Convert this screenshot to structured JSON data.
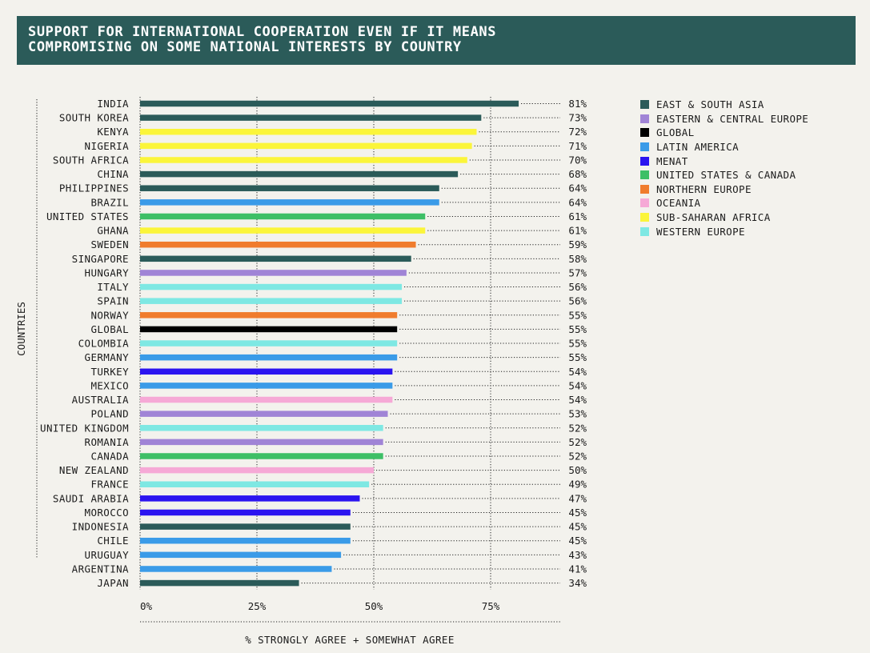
{
  "title": {
    "line1": "SUPPORT FOR INTERNATIONAL COOPERATION EVEN IF IT MEANS",
    "line2": "COMPROMISING ON SOME NATIONAL INTERESTS BY COUNTRY"
  },
  "chart_data": {
    "type": "bar",
    "orientation": "horizontal",
    "xlabel": "% STRONGLY AGREE + SOMEWHAT AGREE",
    "ylabel": "COUNTRIES",
    "xlim": [
      0,
      90
    ],
    "xticks": [
      0,
      25,
      50,
      75
    ],
    "xtick_labels": [
      "0%",
      "25%",
      "50%",
      "75%"
    ],
    "value_suffix": "%",
    "grid": "vertical-dotted",
    "legend_position": "right",
    "regions": [
      {
        "name": "EAST & SOUTH ASIA",
        "color": "#2b5b59"
      },
      {
        "name": "EASTERN & CENTRAL EUROPE",
        "color": "#a084d6"
      },
      {
        "name": "GLOBAL",
        "color": "#000000"
      },
      {
        "name": "LATIN AMERICA",
        "color": "#3a9be8"
      },
      {
        "name": "MENAT",
        "color": "#2b14f0"
      },
      {
        "name": "UNITED STATES & CANADA",
        "color": "#3dbf66"
      },
      {
        "name": "NORTHERN EUROPE",
        "color": "#f07c2d"
      },
      {
        "name": "OCEANIA",
        "color": "#f6a9d6"
      },
      {
        "name": "SUB-SAHARAN AFRICA",
        "color": "#fbf53a"
      },
      {
        "name": "WESTERN EUROPE",
        "color": "#7ee8e3"
      }
    ],
    "bars": [
      {
        "label": "INDIA",
        "value": 81,
        "region": 0
      },
      {
        "label": "SOUTH KOREA",
        "value": 73,
        "region": 0
      },
      {
        "label": "KENYA",
        "value": 72,
        "region": 8
      },
      {
        "label": "NIGERIA",
        "value": 71,
        "region": 8
      },
      {
        "label": "SOUTH AFRICA",
        "value": 70,
        "region": 8
      },
      {
        "label": "CHINA",
        "value": 68,
        "region": 0
      },
      {
        "label": "PHILIPPINES",
        "value": 64,
        "region": 0
      },
      {
        "label": "BRAZIL",
        "value": 64,
        "region": 3
      },
      {
        "label": "UNITED STATES",
        "value": 61,
        "region": 5
      },
      {
        "label": "GHANA",
        "value": 61,
        "region": 8
      },
      {
        "label": "SWEDEN",
        "value": 59,
        "region": 6
      },
      {
        "label": "SINGAPORE",
        "value": 58,
        "region": 0
      },
      {
        "label": "HUNGARY",
        "value": 57,
        "region": 1
      },
      {
        "label": "ITALY",
        "value": 56,
        "region": 9
      },
      {
        "label": "SPAIN",
        "value": 56,
        "region": 9
      },
      {
        "label": "NORWAY",
        "value": 55,
        "region": 6
      },
      {
        "label": "GLOBAL",
        "value": 55,
        "region": 2
      },
      {
        "label": "COLOMBIA",
        "value": 55,
        "region": 9
      },
      {
        "label": "GERMANY",
        "value": 55,
        "region": 3
      },
      {
        "label": "TURKEY",
        "value": 54,
        "region": 4
      },
      {
        "label": "MEXICO",
        "value": 54,
        "region": 3
      },
      {
        "label": "AUSTRALIA",
        "value": 54,
        "region": 7
      },
      {
        "label": "POLAND",
        "value": 53,
        "region": 1
      },
      {
        "label": "UNITED KINGDOM",
        "value": 52,
        "region": 9
      },
      {
        "label": "ROMANIA",
        "value": 52,
        "region": 1
      },
      {
        "label": "CANADA",
        "value": 52,
        "region": 5
      },
      {
        "label": "NEW ZEALAND",
        "value": 50,
        "region": 7
      },
      {
        "label": "FRANCE",
        "value": 49,
        "region": 9
      },
      {
        "label": "SAUDI ARABIA",
        "value": 47,
        "region": 4
      },
      {
        "label": "MOROCCO",
        "value": 45,
        "region": 4
      },
      {
        "label": "INDONESIA",
        "value": 45,
        "region": 0
      },
      {
        "label": "CHILE",
        "value": 45,
        "region": 3
      },
      {
        "label": "URUGUAY",
        "value": 43,
        "region": 3
      },
      {
        "label": "ARGENTINA",
        "value": 41,
        "region": 3
      },
      {
        "label": "JAPAN",
        "value": 34,
        "region": 0
      }
    ]
  }
}
